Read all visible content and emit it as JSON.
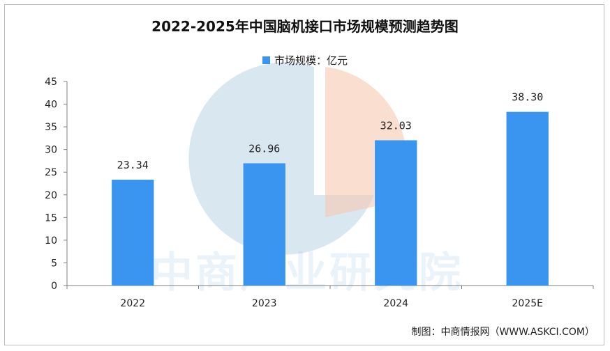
{
  "colors": {
    "bar": "#3a95f0",
    "axis": "#7f7f7f",
    "watermark_blue": "#b9d3e6",
    "watermark_orange": "#f6c9b3"
  },
  "watermark": {
    "text": "中商产业研究院"
  },
  "source": "制图：中商情报网（WWW.ASKCI.COM）",
  "chart_data": {
    "type": "bar",
    "title": "2022-2025年中国脑机接口市场规模预测趋势图",
    "categories": [
      "2022",
      "2023",
      "2024",
      "2025E"
    ],
    "series": [
      {
        "name": "市场规模：亿元",
        "values": [
          23.34,
          26.96,
          32.03,
          38.3
        ]
      }
    ],
    "value_labels": [
      "23.34",
      "26.96",
      "32.03",
      "38.30"
    ],
    "ylim": [
      0,
      45
    ],
    "yticks": [
      0,
      5,
      10,
      15,
      20,
      25,
      30,
      35,
      40,
      45
    ],
    "grid": false,
    "legend": "top-center"
  }
}
